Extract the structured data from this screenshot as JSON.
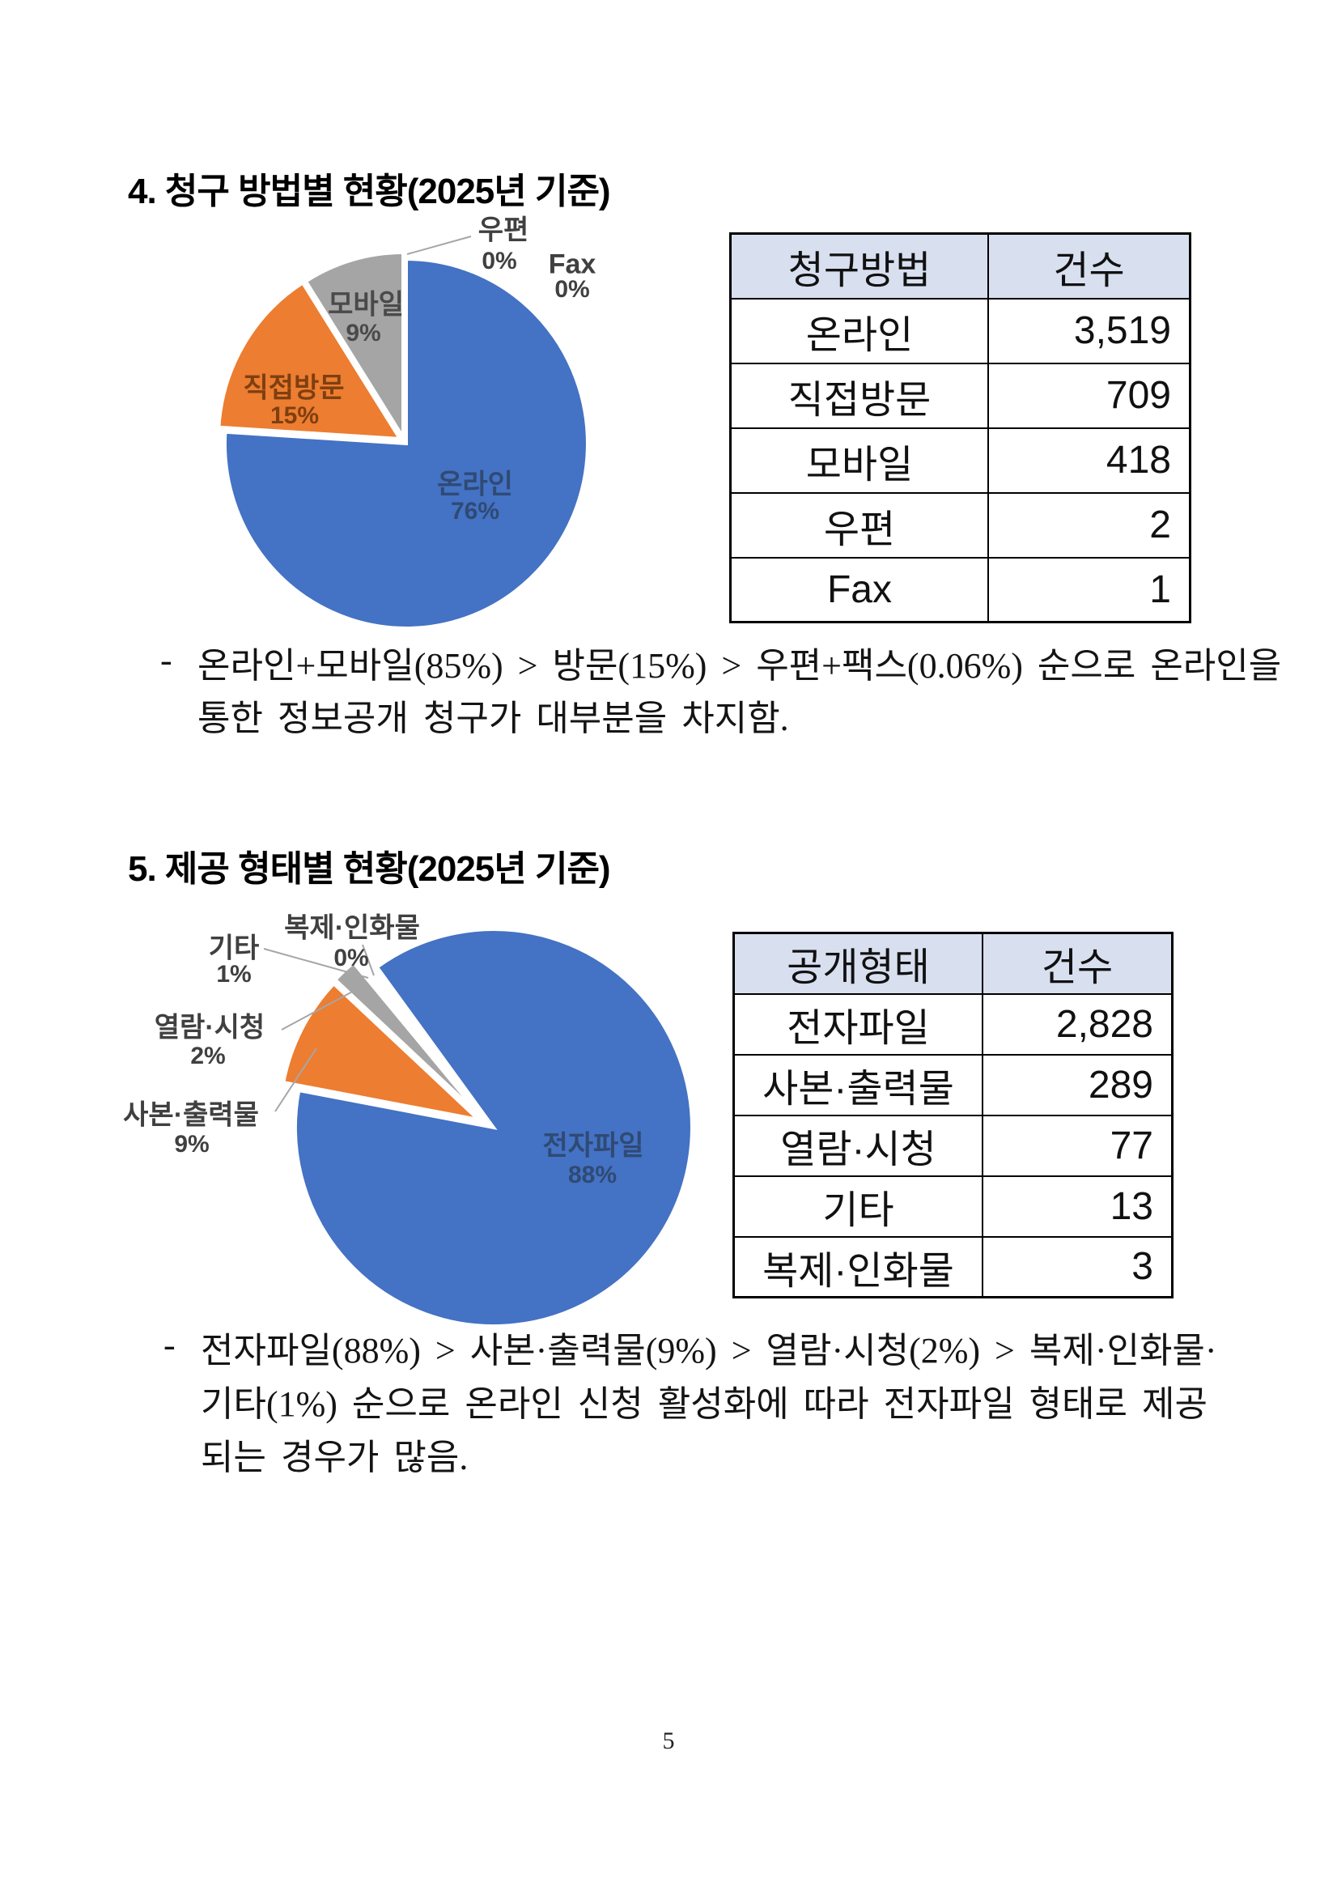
{
  "page": {
    "number": "5"
  },
  "colors": {
    "table_header_bg": "#D8DFEF",
    "table_border": "#000000",
    "leader_line": "#A6A6A6",
    "pie_blue": "#4472C4",
    "pie_orange": "#ED7D31",
    "pie_gray": "#A5A5A5"
  },
  "sections": [
    {
      "heading": "4. 청구 방법별 현황(2025년 기준)",
      "table": {
        "headers": [
          "청구방법",
          "건수"
        ],
        "rows": [
          [
            "온라인",
            "3,519"
          ],
          [
            "직접방문",
            "709"
          ],
          [
            "모바일",
            "418"
          ],
          [
            "우편",
            "2"
          ],
          [
            "Fax",
            "1"
          ]
        ]
      },
      "bullet": "-",
      "note_lines": [
        "온라인+모바일(85%) > 방문(15%) > 우편+팩스(0.06%) 순으로 온라인을",
        "통한 정보공개 청구가 대부분을 차지함."
      ]
    },
    {
      "heading": "5. 제공 형태별 현황(2025년 기준)",
      "table": {
        "headers": [
          "공개형태",
          "건수"
        ],
        "rows": [
          [
            "전자파일",
            "2,828"
          ],
          [
            "사본·출력물",
            "289"
          ],
          [
            "열람·시청",
            "77"
          ],
          [
            "기타",
            "13"
          ],
          [
            "복제·인화물",
            "3"
          ]
        ]
      },
      "bullet": "-",
      "note_lines": [
        "전자파일(88%) > 사본·출력물(9%) > 열람·시청(2%) > 복제·인화물·",
        "기타(1%) 순으로 온라인 신청 활성화에 따라 전자파일 형태로 제공",
        "되는 경우가 많음."
      ]
    }
  ],
  "chart_data": [
    {
      "type": "pie",
      "title": "청구 방법별 현황(2025년 기준)",
      "categories": [
        "온라인",
        "직접방문",
        "모바일",
        "우편",
        "Fax"
      ],
      "values": [
        3519,
        709,
        418,
        2,
        1
      ],
      "percents": [
        76,
        15,
        9,
        0,
        0
      ],
      "percent_labels": [
        "76%",
        "15%",
        "9%",
        "0%",
        "0%"
      ],
      "colors": [
        "#4472C4",
        "#ED7D31",
        "#A5A5A5",
        null,
        null
      ],
      "label_colors": [
        "#2F4A74",
        "#7E3F10",
        "#4A4A4A",
        "#404040",
        "#404040"
      ],
      "start_deg": 0,
      "explode": [
        [
          2,
          2
        ],
        [
          -6,
          -4
        ],
        [
          -2,
          -6
        ],
        [
          0,
          0
        ],
        [
          0,
          0
        ]
      ],
      "legend": "none",
      "labels_on": "slices"
    },
    {
      "type": "pie",
      "title": "제공 형태별 현황(2025년 기준)",
      "categories": [
        "전자파일",
        "사본·출력물",
        "열람·시청",
        "기타",
        "복제·인화물"
      ],
      "values": [
        2828,
        289,
        77,
        13,
        3
      ],
      "percents": [
        88,
        9,
        2,
        1,
        0
      ],
      "percent_labels": [
        "88%",
        "9%",
        "2%",
        "1%",
        "0%"
      ],
      "colors": [
        "#4472C4",
        "#ED7D31",
        "#A5A5A5",
        null,
        null
      ],
      "label_colors": [
        "#2F4A74",
        "#404040",
        "#404040",
        "#404040",
        "#404040"
      ],
      "start_deg": -36,
      "explode": [
        [
          5,
          3
        ],
        [
          -14,
          -7
        ],
        [
          -12,
          -12
        ],
        [
          -10,
          -13
        ],
        [
          0,
          0
        ]
      ],
      "legend": "none",
      "labels_on": "slices"
    }
  ]
}
